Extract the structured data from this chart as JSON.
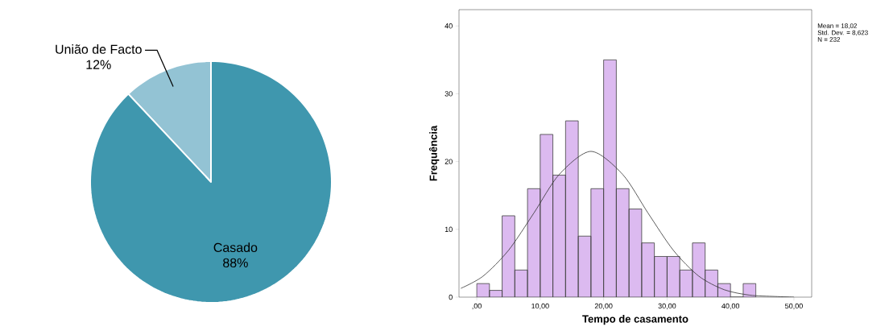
{
  "chart_data": [
    {
      "type": "pie",
      "categories": [
        "União de Facto",
        "Casado"
      ],
      "values": [
        12,
        88
      ],
      "colors": [
        "#93c3d4",
        "#3f97ae"
      ],
      "value_labels": [
        "12%",
        "88%"
      ]
    },
    {
      "type": "histogram",
      "xlabel": "Tempo de casamento",
      "ylabel": "Frequência",
      "color": "#dcbaf0",
      "bins": [
        0,
        2,
        4,
        6,
        8,
        10,
        12,
        14,
        16,
        18,
        20,
        22,
        24,
        26,
        28,
        30,
        32,
        34,
        36,
        38,
        40,
        42,
        44
      ],
      "values": [
        2,
        1,
        12,
        4,
        16,
        24,
        18,
        26,
        9,
        16,
        35,
        16,
        13,
        8,
        6,
        6,
        4,
        8,
        4,
        2,
        0,
        2
      ],
      "series": [
        {
          "type": "line",
          "color": "#333333",
          "x": [
            -2.5,
            1,
            5,
            9,
            13,
            18,
            23,
            27,
            31,
            35,
            39,
            43,
            47,
            50
          ],
          "values": [
            1.3,
            3.1,
            6.9,
            12.4,
            18.1,
            21.5,
            18.1,
            12.4,
            6.9,
            3.1,
            1.1,
            0.3,
            0.1,
            0
          ]
        }
      ],
      "xlim": [
        -2.8,
        52.8
      ],
      "ylim": [
        0,
        42.4
      ],
      "xticks": [
        {
          "value": 0,
          "label": ",00"
        },
        {
          "value": 10,
          "label": "10,00"
        },
        {
          "value": 20,
          "label": "20,00"
        },
        {
          "value": 30,
          "label": "30,00"
        },
        {
          "value": 40,
          "label": "40,00"
        },
        {
          "value": 50,
          "label": "50,00"
        }
      ],
      "yticks": [
        0,
        10,
        20,
        30,
        40
      ],
      "annotations": [
        "Mean = 18,02",
        "Std. Dev. = 8,623",
        "N = 232"
      ]
    }
  ]
}
